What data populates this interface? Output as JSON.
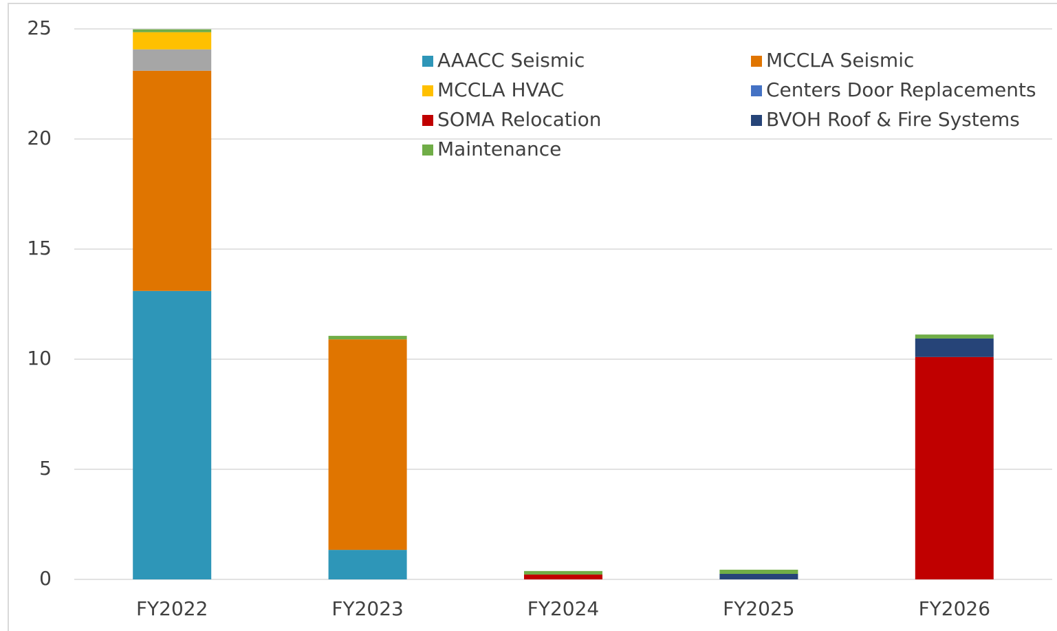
{
  "chart_data": {
    "type": "stacked_bar",
    "categories": [
      "FY2022",
      "FY2023",
      "FY2024",
      "FY2025",
      "FY2026"
    ],
    "series": [
      {
        "name": "AAACC Seismic",
        "color": "#2e96b8",
        "values": [
          13.1,
          1.34,
          0,
          0,
          0
        ]
      },
      {
        "name": "MCCLA Seismic",
        "color": "#e07500",
        "values": [
          10.0,
          9.56,
          0,
          0,
          0
        ]
      },
      {
        "name": null,
        "color": "#a6a6a6",
        "values": [
          0.97,
          0,
          0,
          0,
          0
        ]
      },
      {
        "name": "MCCLA HVAC",
        "color": "#ffc000",
        "values": [
          0.78,
          0,
          0,
          0,
          0
        ]
      },
      {
        "name": "Centers Door Replacements",
        "color": "#4472c4",
        "values": [
          0,
          0,
          0,
          0,
          0
        ]
      },
      {
        "name": "SOMA Relocation",
        "color": "#c00000",
        "values": [
          0,
          0,
          0.22,
          0,
          10.1
        ]
      },
      {
        "name": "BVOH Roof & Fire Systems",
        "color": "#264478",
        "values": [
          0,
          0,
          0,
          0.25,
          0.84
        ]
      },
      {
        "name": "Maintenance",
        "color": "#70ad47",
        "values": [
          0.13,
          0.16,
          0.16,
          0.19,
          0.18
        ]
      }
    ],
    "ylim": [
      0,
      25
    ],
    "yticks": [
      0,
      5,
      10,
      15,
      20,
      25
    ],
    "grid": true,
    "legend": "top-right"
  }
}
